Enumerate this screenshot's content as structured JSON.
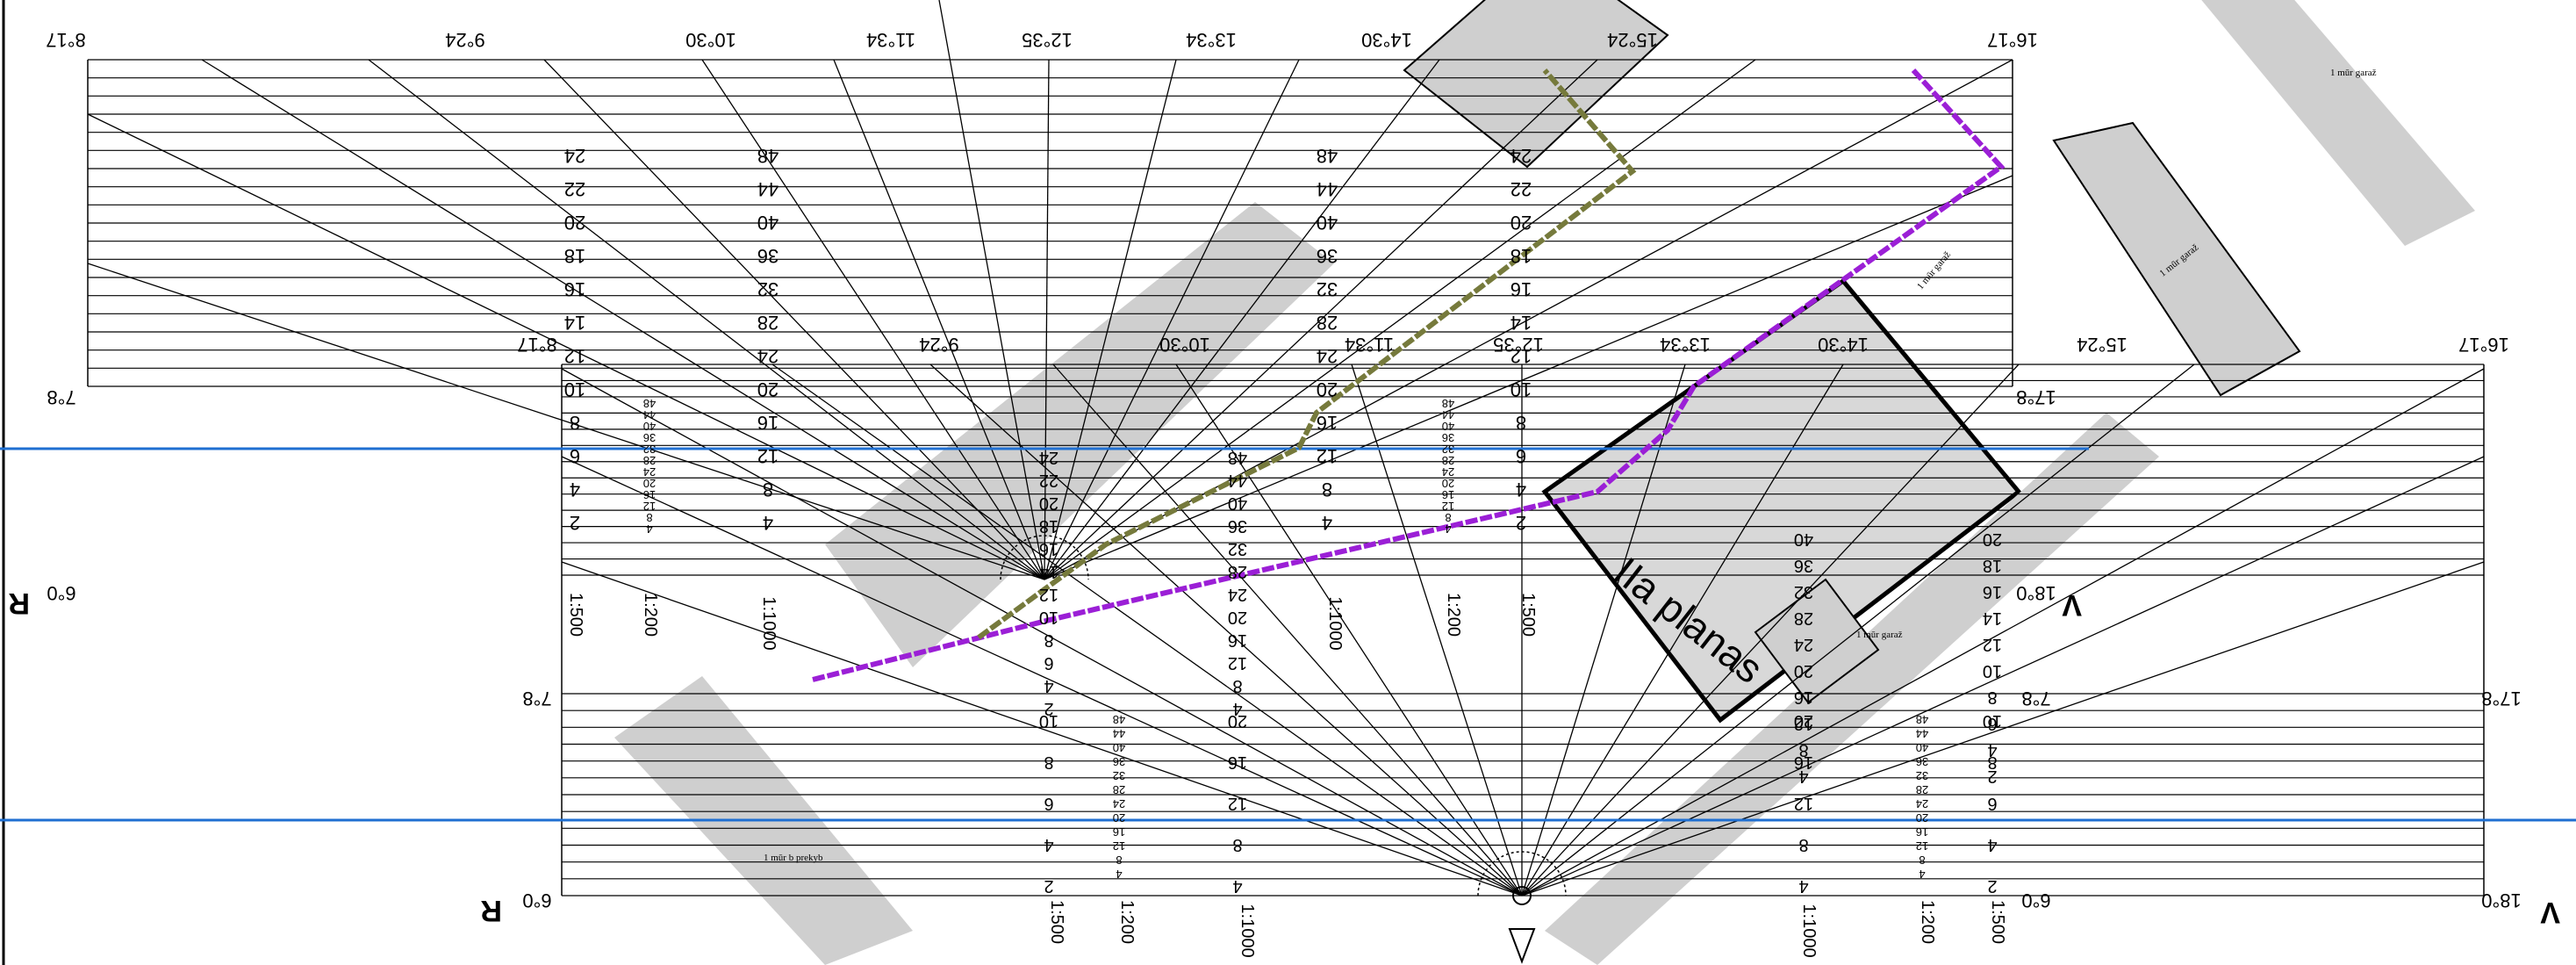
{
  "diagram": {
    "main_label": "IIa planas",
    "letters": {
      "r": "R",
      "v": "V"
    },
    "building_notes": [
      "1 mūr garaž",
      "1 mūr garaž",
      "1 mūr garaž",
      "1 mūr b prekyb",
      "1 mūr garaž"
    ],
    "colors": {
      "purple_route": "#9b1fd6",
      "olive_route": "#767a3c",
      "blue_lines": "#1f6fd1",
      "buildings": "#cfcfcf"
    },
    "scales": [
      "1:500",
      "1:200",
      "1:1000",
      "1:1000",
      "1:200",
      "1:500",
      "1:500",
      "1:200",
      "1:1000",
      "1:1000",
      "1:200",
      "1:500"
    ],
    "top_ticks": [
      "8°17",
      "9°24",
      "10°30",
      "11°34",
      "12°35",
      "13°34",
      "14°30",
      "15°24",
      "16°17"
    ],
    "mid_ticks": [
      "8°17",
      "9°24",
      "10°30",
      "11°34",
      "12°35",
      "13°34",
      "14°30",
      "15°24",
      "16°17"
    ],
    "corner_ticks": [
      "7°8",
      "6°0",
      "17°8",
      "18°0",
      "7°8",
      "6°0",
      "17°8",
      "18°0",
      "7°8",
      "6°0"
    ],
    "number_cols": {
      "top_left": [
        "24",
        "22",
        "20",
        "18",
        "16",
        "14",
        "12",
        "10",
        "8",
        "6",
        "4",
        "2"
      ],
      "top_mid": [
        "48",
        "44",
        "40",
        "36",
        "32",
        "28",
        "24",
        "20",
        "16",
        "12",
        "8",
        "4"
      ],
      "top_right": [
        "48",
        "44",
        "40",
        "36",
        "32",
        "28",
        "24",
        "20",
        "16",
        "12",
        "8",
        "4"
      ],
      "top_far": [
        "24",
        "22",
        "20",
        "18",
        "16",
        "14",
        "12",
        "10",
        "8",
        "6",
        "4",
        "2"
      ],
      "small_a": [
        "48",
        "44",
        "40",
        "36",
        "32",
        "28",
        "24",
        "20",
        "16",
        "12",
        "8",
        "4"
      ],
      "small_b": [
        "48",
        "44",
        "40",
        "36",
        "32",
        "28",
        "24",
        "20",
        "16",
        "12",
        "8",
        "4"
      ],
      "mid_12": [
        "24",
        "22",
        "20",
        "18",
        "16",
        "14",
        "12",
        "10",
        "8",
        "6",
        "4",
        "2"
      ],
      "mid_24": [
        "48",
        "44",
        "40",
        "36",
        "32",
        "28",
        "24",
        "20",
        "16",
        "12",
        "8",
        "4"
      ],
      "right_20": [
        "20",
        "18",
        "16",
        "14",
        "12",
        "10",
        "8",
        "6",
        "4",
        "2"
      ],
      "right_40": [
        "40",
        "36",
        "32",
        "28",
        "24",
        "20",
        "16",
        "12",
        "8",
        "4"
      ],
      "bot_10": [
        "10",
        "8",
        "6",
        "4",
        "2"
      ],
      "bot_20": [
        "20",
        "16",
        "12",
        "8",
        "4"
      ],
      "bot_small": [
        "48",
        "44",
        "40",
        "36",
        "32",
        "28",
        "24",
        "20",
        "16",
        "12",
        "8",
        "4"
      ],
      "bot_r20": [
        "20",
        "16",
        "12",
        "8",
        "4"
      ],
      "bot_r10": [
        "10",
        "8",
        "6",
        "4",
        "2"
      ]
    }
  }
}
